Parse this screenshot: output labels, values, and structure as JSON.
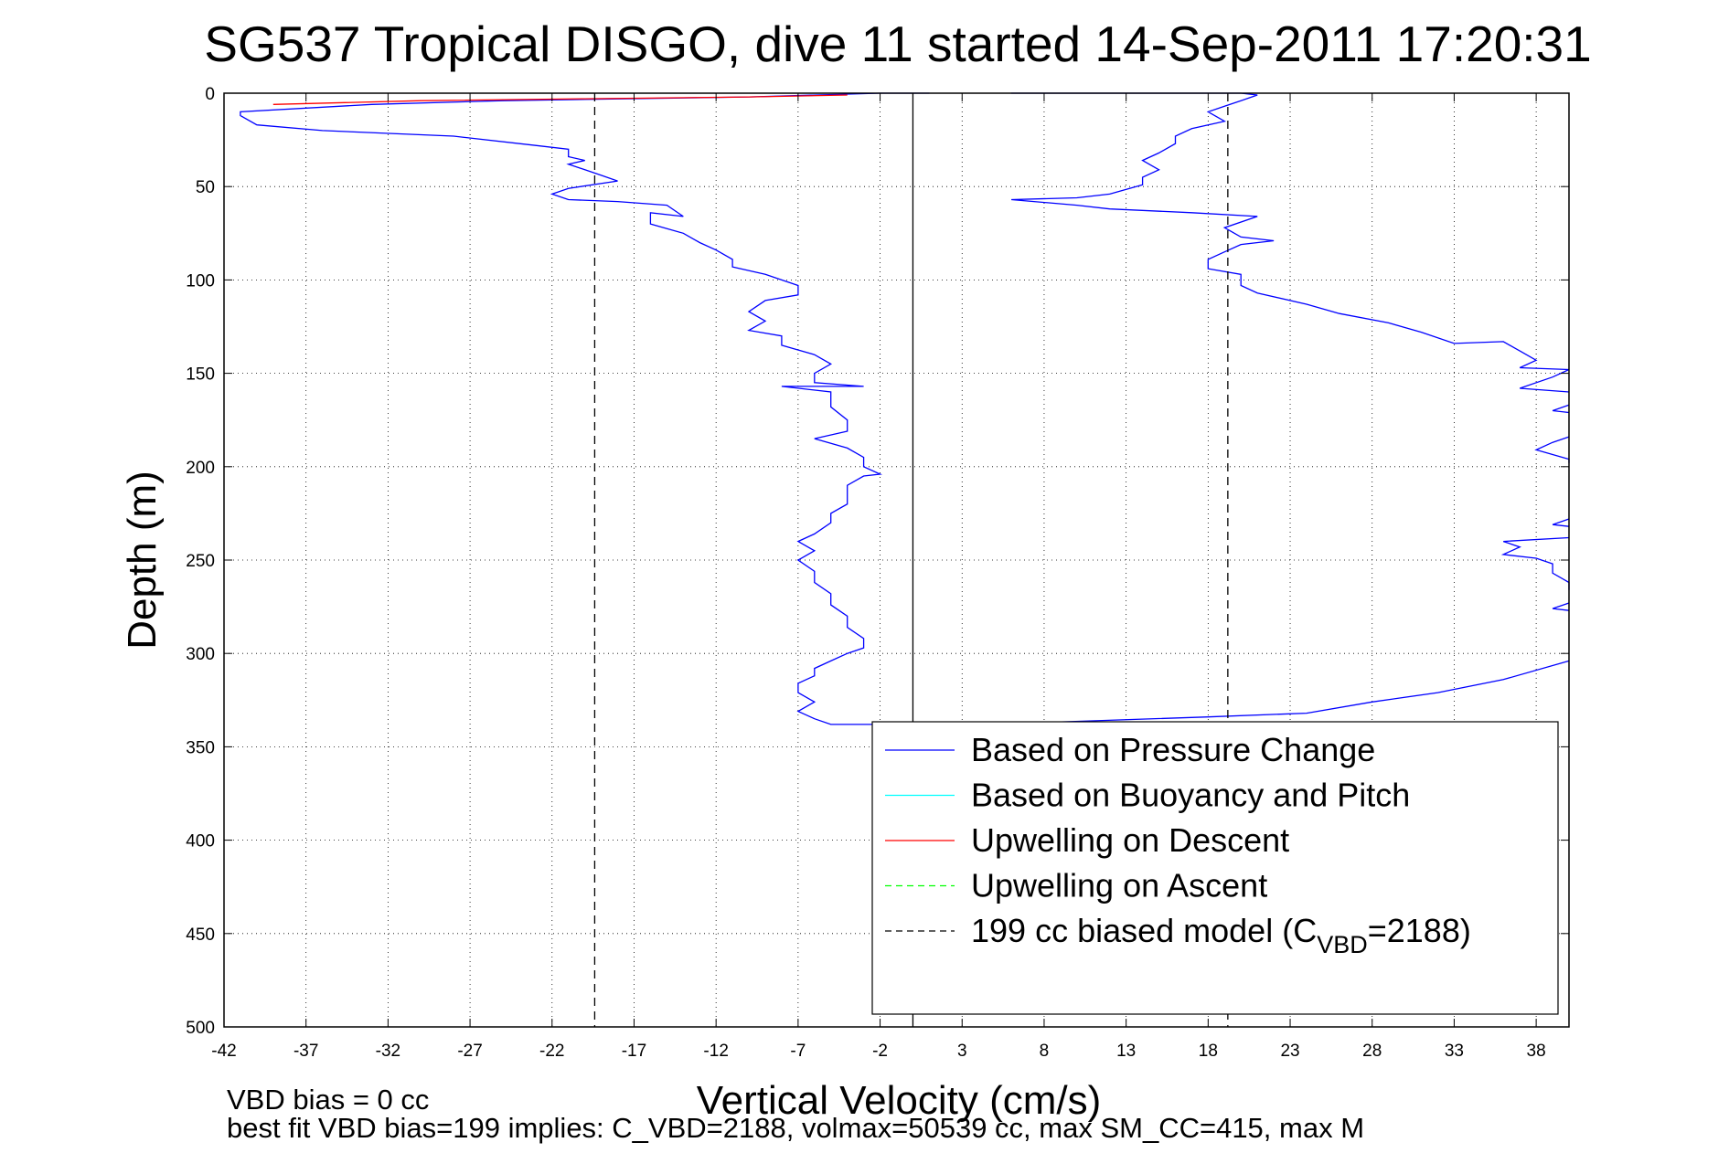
{
  "chart_data": {
    "type": "line",
    "title": "SG537 Tropical DISGO, dive 11 started 14-Sep-2011 17:20:31",
    "xlabel": "Vertical Velocity (cm/s)",
    "ylabel": "Depth (m)",
    "xlim": [
      -42,
      40
    ],
    "ylim": [
      0,
      500
    ],
    "y_reversed": true,
    "grid": true,
    "xticks": [
      -42,
      -37,
      -32,
      -27,
      -22,
      -17,
      -12,
      -7,
      -2,
      3,
      8,
      13,
      18,
      23,
      28,
      33,
      38
    ],
    "yticks": [
      0,
      50,
      100,
      150,
      200,
      250,
      300,
      350,
      400,
      450,
      500
    ],
    "legend_position": "bottom-right",
    "colors": {
      "pressure": "#0000ff",
      "buoyancy": "#00ffff",
      "descent_upwelling": "#ff0000",
      "ascent_upwelling": "#00ff00",
      "model": "#000000"
    },
    "legend": [
      {
        "label": "Based on Pressure Change",
        "color": "#0000ff",
        "style": "solid"
      },
      {
        "label": "Based on Buoyancy and Pitch",
        "color": "#00ffff",
        "style": "solid"
      },
      {
        "label": "Upwelling on Descent",
        "color": "#ff0000",
        "style": "solid"
      },
      {
        "label": "Upwelling on Ascent",
        "color": "#00ff00",
        "style": "dashed"
      },
      {
        "label_prefix": "199 cc biased model (C",
        "label_subscript": "VBD",
        "label_suffix": "=2188)",
        "color": "#000000",
        "style": "dashed"
      }
    ],
    "series": [
      {
        "name": "Based on Pressure Change",
        "segment": "descent",
        "color": "#0000ff",
        "points": [
          [
            1,
            0
          ],
          [
            -2,
            0
          ],
          [
            -10,
            2
          ],
          [
            -25,
            4
          ],
          [
            -33,
            6
          ],
          [
            -41,
            10
          ],
          [
            -41,
            12
          ],
          [
            -40,
            17
          ],
          [
            -36,
            20
          ],
          [
            -28,
            23
          ],
          [
            -23,
            28
          ],
          [
            -21,
            30
          ],
          [
            -21,
            34
          ],
          [
            -20,
            36
          ],
          [
            -21,
            38
          ],
          [
            -20,
            41
          ],
          [
            -19,
            44
          ],
          [
            -18,
            47
          ],
          [
            -21,
            51
          ],
          [
            -22,
            54
          ],
          [
            -21,
            57
          ],
          [
            -18,
            58
          ],
          [
            -15,
            60
          ],
          [
            -14,
            66
          ],
          [
            -16,
            64
          ],
          [
            -16,
            70
          ],
          [
            -14,
            75
          ],
          [
            -13,
            80
          ],
          [
            -12,
            84
          ],
          [
            -11,
            89
          ],
          [
            -11,
            93
          ],
          [
            -9,
            97
          ],
          [
            -8,
            100
          ],
          [
            -7,
            103
          ],
          [
            -7,
            108
          ],
          [
            -9,
            111
          ],
          [
            -10,
            117
          ],
          [
            -9,
            122
          ],
          [
            -10,
            127
          ],
          [
            -8,
            130
          ],
          [
            -8,
            135
          ],
          [
            -6,
            140
          ],
          [
            -5,
            145
          ],
          [
            -6,
            150
          ],
          [
            -6,
            155
          ],
          [
            -3,
            157
          ],
          [
            -8,
            157
          ],
          [
            -5,
            160
          ],
          [
            -5,
            168
          ],
          [
            -4,
            175
          ],
          [
            -4,
            181
          ],
          [
            -6,
            185
          ],
          [
            -4,
            190
          ],
          [
            -3,
            195
          ],
          [
            -3,
            200
          ],
          [
            -2,
            204
          ],
          [
            -3,
            205
          ],
          [
            -4,
            210
          ],
          [
            -4,
            220
          ],
          [
            -5,
            225
          ],
          [
            -5,
            230
          ],
          [
            -6,
            236
          ],
          [
            -7,
            240
          ],
          [
            -6,
            245
          ],
          [
            -7,
            250
          ],
          [
            -6,
            256
          ],
          [
            -6,
            262
          ],
          [
            -5,
            268
          ],
          [
            -5,
            274
          ],
          [
            -4,
            280
          ],
          [
            -4,
            286
          ],
          [
            -3,
            292
          ],
          [
            -3,
            297
          ],
          [
            -4,
            300
          ],
          [
            -5,
            304
          ],
          [
            -6,
            308
          ],
          [
            -6,
            312
          ],
          [
            -7,
            316
          ],
          [
            -7,
            321
          ],
          [
            -6,
            326
          ],
          [
            -7,
            331
          ],
          [
            -6,
            335
          ],
          [
            -5,
            338
          ],
          [
            -1,
            338
          ]
        ]
      },
      {
        "name": "Based on Pressure Change",
        "segment": "ascent",
        "color": "#0000ff",
        "points": [
          [
            -1,
            338
          ],
          [
            8,
            337
          ],
          [
            18,
            334
          ],
          [
            24,
            332
          ],
          [
            28,
            326
          ],
          [
            32,
            321
          ],
          [
            36,
            314
          ],
          [
            40,
            304
          ]
        ]
      },
      {
        "name": "Based on Pressure Change",
        "segment": "ascent-upper",
        "color": "#0000ff",
        "points": [
          [
            40,
            160
          ],
          [
            37,
            158
          ],
          [
            39,
            152
          ],
          [
            40,
            148
          ],
          [
            37,
            147
          ],
          [
            38,
            143
          ],
          [
            37,
            138
          ],
          [
            36,
            133
          ],
          [
            33,
            134
          ],
          [
            31,
            128
          ],
          [
            29,
            123
          ],
          [
            26,
            118
          ],
          [
            24,
            113
          ],
          [
            21,
            107
          ],
          [
            20,
            103
          ],
          [
            20,
            97
          ],
          [
            18,
            94
          ],
          [
            18,
            89
          ],
          [
            19,
            85
          ],
          [
            20,
            81
          ],
          [
            22,
            79
          ],
          [
            20,
            77
          ],
          [
            19,
            72
          ],
          [
            21,
            66
          ],
          [
            17,
            64
          ],
          [
            12,
            62
          ],
          [
            10,
            60
          ],
          [
            6,
            57
          ],
          [
            10,
            56
          ],
          [
            12,
            54
          ],
          [
            14,
            49
          ],
          [
            14,
            45
          ],
          [
            15,
            41
          ],
          [
            14,
            36
          ],
          [
            15,
            32
          ],
          [
            16,
            27
          ],
          [
            16,
            23
          ],
          [
            17,
            19
          ],
          [
            19,
            15
          ],
          [
            18,
            10
          ],
          [
            19,
            7
          ],
          [
            20,
            4
          ],
          [
            21,
            1
          ],
          [
            20,
            0
          ],
          [
            6,
            0
          ]
        ]
      },
      {
        "name": "Based on Pressure Change",
        "segment": "ascent-fragments",
        "color": "#0000ff",
        "points_groups": [
          [
            [
              40,
              167
            ],
            [
              39,
              170
            ],
            [
              40,
              171
            ]
          ],
          [
            [
              40,
              184
            ],
            [
              39,
              187
            ],
            [
              38,
              191
            ],
            [
              40,
              196
            ],
            [
              40,
              198
            ]
          ],
          [
            [
              40,
              228
            ],
            [
              39,
              231
            ],
            [
              40,
              232
            ]
          ],
          [
            [
              40,
              238
            ],
            [
              36,
              240
            ],
            [
              37,
              243
            ],
            [
              36,
              247
            ],
            [
              38,
              249
            ],
            [
              39,
              252
            ],
            [
              39,
              257
            ],
            [
              40,
              262
            ],
            [
              40,
              266
            ]
          ],
          [
            [
              40,
              273
            ],
            [
              39,
              276
            ],
            [
              40,
              277
            ]
          ]
        ]
      },
      {
        "name": "Upwelling on Descent",
        "color": "#ff0000",
        "points": [
          [
            -39,
            6
          ],
          [
            -30,
            4
          ],
          [
            -20,
            3
          ],
          [
            -10,
            2
          ],
          [
            -4,
            1
          ]
        ]
      },
      {
        "name": "199 cc biased model",
        "color": "#000000",
        "style": "dashed",
        "x_lines": [
          -19.4,
          19.2
        ]
      },
      {
        "name": "zero line",
        "color": "#000000",
        "style": "solid",
        "x_lines": [
          0
        ]
      }
    ],
    "annotations": [
      "VBD bias = 0 cc",
      "best fit VBD bias=199 implies: C_VBD=2188, volmax=50539 cc, max SM_CC=415, max M"
    ]
  }
}
